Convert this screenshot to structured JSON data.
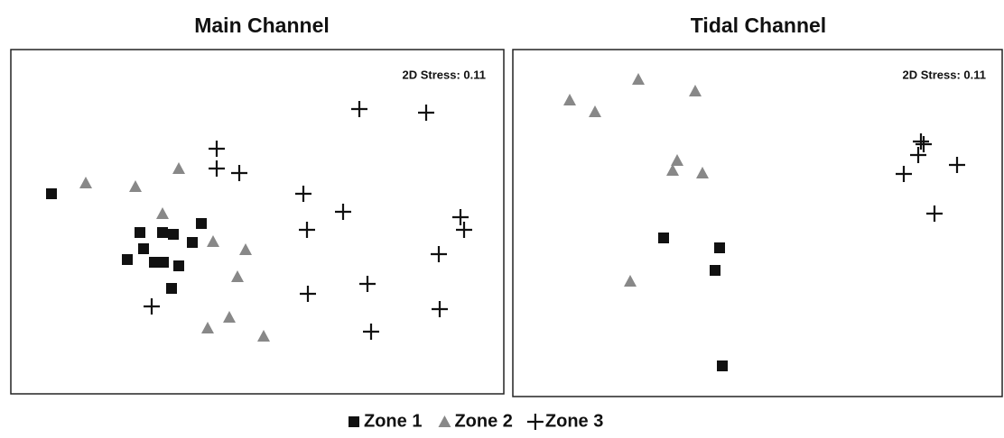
{
  "chart_data": [
    {
      "type": "scatter",
      "title": "Main Channel",
      "annotation": "2D Stress: 0.11",
      "xlim": [
        0,
        546
      ],
      "ylim": [
        0,
        382
      ],
      "series": [
        {
          "name": "Zone 1",
          "color": "#111111",
          "marker": "square",
          "x": [
            45,
            143,
            168,
            180,
            211,
            201,
            147,
            129,
            159,
            169,
            186,
            178
          ],
          "values": [
            222,
            179,
            179,
            177,
            189,
            168,
            161,
            149,
            146,
            146,
            142,
            117
          ]
        },
        {
          "name": "Zone 2",
          "color": "#888888",
          "marker": "triangle",
          "x": [
            83,
            138,
            186,
            168,
            224,
            260,
            251,
            218,
            242,
            280
          ],
          "values": [
            234,
            230,
            250,
            200,
            169,
            160,
            130,
            73,
            85,
            64
          ]
        },
        {
          "name": "Zone 3",
          "color": "#111111",
          "marker": "plus",
          "x": [
            386,
            460,
            228,
            228,
            253,
            324,
            368,
            328,
            498,
            502,
            474,
            395,
            329,
            156,
            475,
            399
          ],
          "values": [
            316,
            312,
            272,
            250,
            245,
            222,
            202,
            182,
            196,
            182,
            155,
            122,
            111,
            97,
            94,
            69
          ]
        }
      ]
    },
    {
      "type": "scatter",
      "title": "Tidal Channel",
      "annotation": "2D Stress: 0.11",
      "xlim": [
        0,
        542
      ],
      "ylim": [
        0,
        385
      ],
      "series": [
        {
          "color": "#111111",
          "marker": "square",
          "x": [
            167,
            229,
            224,
            232
          ],
          "values": [
            176,
            165,
            140,
            34
          ]
        },
        {
          "color": "#888888",
          "marker": "triangle",
          "x": [
            63,
            91,
            139,
            202,
            182,
            177,
            210,
            130
          ],
          "values": [
            329,
            316,
            352,
            339,
            262,
            251,
            248,
            128
          ]
        },
        {
          "color": "#111111",
          "marker": "plus",
          "x": [
            452,
            455,
            449,
            433,
            492,
            467
          ],
          "values": [
            283,
            280,
            268,
            247,
            257,
            203
          ]
        }
      ]
    }
  ]
}
